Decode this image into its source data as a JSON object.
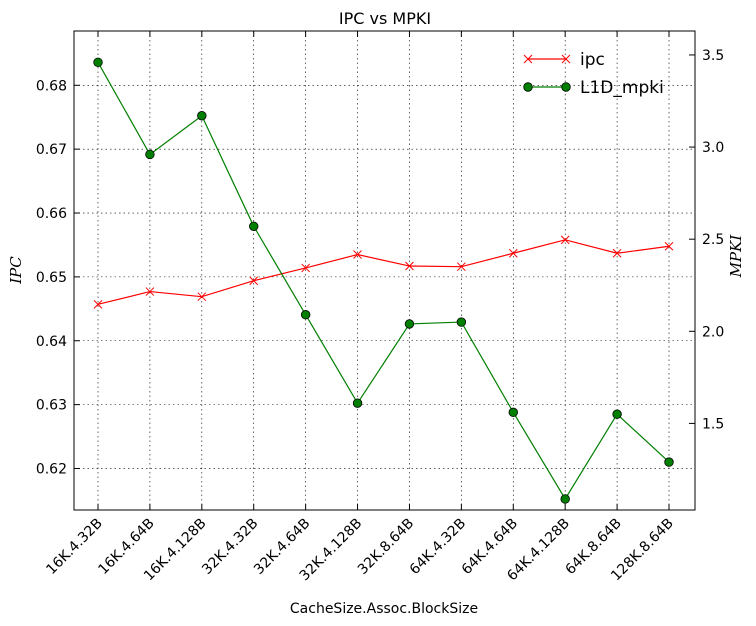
{
  "chart_data": {
    "type": "line",
    "title": "IPC vs MPKI",
    "xlabel": "CacheSize.Assoc.BlockSize",
    "ylabel_left": "IPC",
    "ylabel_right": "MPKI",
    "categories": [
      "16K.4.32B",
      "16K.4.64B",
      "16K.4.128B",
      "32K.4.32B",
      "32K.4.64B",
      "32K.4.128B",
      "32K.8.64B",
      "64K.4.32B",
      "64K.4.64B",
      "64K.4.128B",
      "64K.8.64B",
      "128K.8.64B"
    ],
    "ylim_left": [
      0.6135,
      0.6885
    ],
    "yticks_left": [
      "0.62",
      "0.63",
      "0.64",
      "0.65",
      "0.66",
      "0.67",
      "0.68"
    ],
    "ylim_right": [
      1.03,
      3.63
    ],
    "yticks_right": [
      "1.5",
      "2.0",
      "2.5",
      "3.0",
      "3.5"
    ],
    "grid": true,
    "legend_position": "top-right",
    "series": [
      {
        "name": "ipc",
        "axis": "left",
        "color": "#ff0000",
        "marker": "x",
        "values": [
          0.6457,
          0.6477,
          0.6469,
          0.6494,
          0.6514,
          0.6535,
          0.6517,
          0.6516,
          0.6537,
          0.6558,
          0.6537,
          0.6548
        ]
      },
      {
        "name": "L1D_mpki",
        "axis": "right",
        "color": "#007f00",
        "marker": "circle",
        "values": [
          3.46,
          2.96,
          3.17,
          2.57,
          2.09,
          1.61,
          2.04,
          2.05,
          1.56,
          1.09,
          1.55,
          1.29
        ]
      }
    ]
  }
}
